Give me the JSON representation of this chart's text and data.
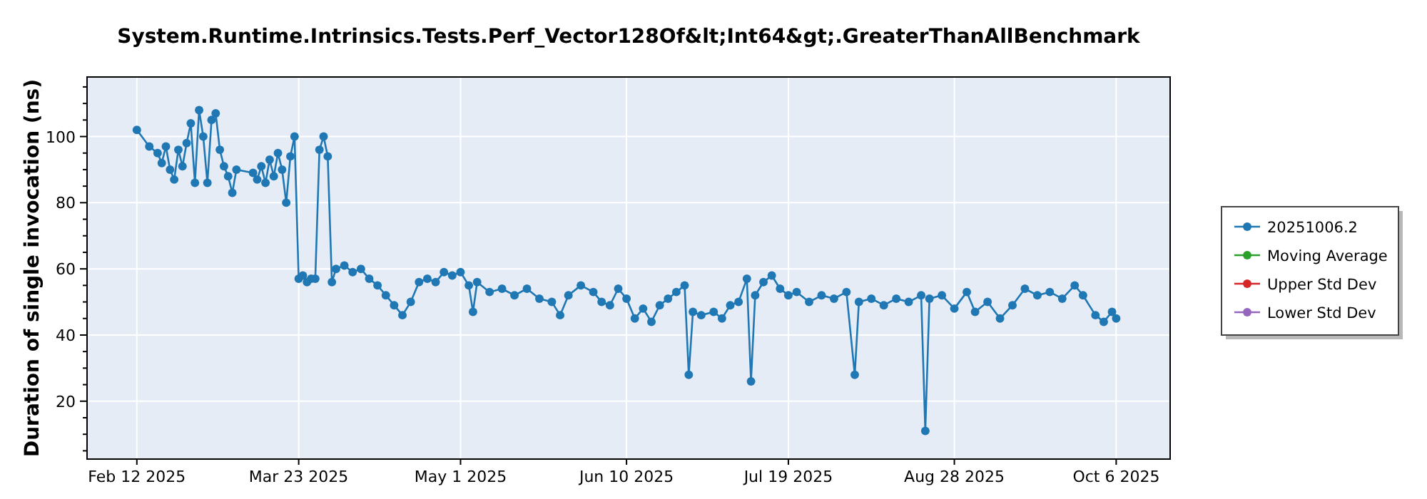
{
  "chart_data": {
    "type": "line",
    "title": "System.Runtime.Intrinsics.Tests.Perf_Vector128Of&lt;Int64&gt;.GreaterThanAllBenchmark",
    "ylabel": "Duration of single invocation (ns)",
    "x": [
      "2025-02-12",
      "2025-02-15",
      "2025-02-17",
      "2025-02-18",
      "2025-02-19",
      "2025-02-20",
      "2025-02-21",
      "2025-02-22",
      "2025-02-23",
      "2025-02-24",
      "2025-02-25",
      "2025-02-26",
      "2025-02-27",
      "2025-02-28",
      "2025-03-01",
      "2025-03-02",
      "2025-03-03",
      "2025-03-04",
      "2025-03-05",
      "2025-03-06",
      "2025-03-07",
      "2025-03-08",
      "2025-03-12",
      "2025-03-13",
      "2025-03-14",
      "2025-03-15",
      "2025-03-16",
      "2025-03-17",
      "2025-03-18",
      "2025-03-19",
      "2025-03-20",
      "2025-03-21",
      "2025-03-22",
      "2025-03-23",
      "2025-03-24",
      "2025-03-25",
      "2025-03-26",
      "2025-03-27",
      "2025-03-28",
      "2025-03-29",
      "2025-03-30",
      "2025-03-31",
      "2025-04-01",
      "2025-04-03",
      "2025-04-05",
      "2025-04-07",
      "2025-04-09",
      "2025-04-11",
      "2025-04-13",
      "2025-04-15",
      "2025-04-17",
      "2025-04-19",
      "2025-04-21",
      "2025-04-23",
      "2025-04-25",
      "2025-04-27",
      "2025-04-29",
      "2025-05-01",
      "2025-05-03",
      "2025-05-04",
      "2025-05-05",
      "2025-05-08",
      "2025-05-11",
      "2025-05-14",
      "2025-05-17",
      "2025-05-20",
      "2025-05-23",
      "2025-05-25",
      "2025-05-27",
      "2025-05-30",
      "2025-06-02",
      "2025-06-04",
      "2025-06-06",
      "2025-06-08",
      "2025-06-10",
      "2025-06-12",
      "2025-06-14",
      "2025-06-16",
      "2025-06-18",
      "2025-06-20",
      "2025-06-22",
      "2025-06-24",
      "2025-06-25",
      "2025-06-26",
      "2025-06-28",
      "2025-07-01",
      "2025-07-03",
      "2025-07-05",
      "2025-07-07",
      "2025-07-09",
      "2025-07-10",
      "2025-07-11",
      "2025-07-13",
      "2025-07-15",
      "2025-07-17",
      "2025-07-19",
      "2025-07-21",
      "2025-07-24",
      "2025-07-27",
      "2025-07-30",
      "2025-08-02",
      "2025-08-04",
      "2025-08-05",
      "2025-08-08",
      "2025-08-11",
      "2025-08-14",
      "2025-08-17",
      "2025-08-20",
      "2025-08-21",
      "2025-08-22",
      "2025-08-25",
      "2025-08-28",
      "2025-08-31",
      "2025-09-02",
      "2025-09-05",
      "2025-09-08",
      "2025-09-11",
      "2025-09-14",
      "2025-09-17",
      "2025-09-20",
      "2025-09-23",
      "2025-09-26",
      "2025-09-28",
      "2025-10-01",
      "2025-10-03",
      "2025-10-05",
      "2025-10-06"
    ],
    "series": [
      {
        "name": "20251006.2",
        "color": "#1f77b4",
        "values": [
          102,
          97,
          95,
          92,
          97,
          90,
          87,
          96,
          91,
          98,
          104,
          86,
          108,
          100,
          86,
          105,
          107,
          96,
          91,
          88,
          83,
          90,
          89,
          87,
          91,
          86,
          93,
          88,
          95,
          90,
          80,
          94,
          100,
          57,
          58,
          56,
          57,
          57,
          96,
          100,
          94,
          56,
          60,
          61,
          59,
          60,
          57,
          55,
          52,
          49,
          46,
          50,
          56,
          57,
          56,
          59,
          58,
          59,
          55,
          47,
          56,
          53,
          54,
          52,
          54,
          51,
          50,
          46,
          52,
          55,
          53,
          50,
          49,
          54,
          51,
          45,
          48,
          44,
          49,
          51,
          53,
          55,
          28,
          47,
          46,
          47,
          45,
          49,
          50,
          57,
          26,
          52,
          56,
          58,
          54,
          52,
          53,
          50,
          52,
          51,
          53,
          28,
          50,
          51,
          49,
          51,
          50,
          52,
          11,
          51,
          52,
          48,
          53,
          47,
          50,
          45,
          49,
          54,
          52,
          53,
          51,
          55,
          52,
          46,
          44,
          47,
          45
        ]
      },
      {
        "name": "Moving Average",
        "color": "#2ca02c",
        "values": [
          null,
          null,
          null,
          null,
          null,
          null,
          null,
          null,
          null,
          null,
          null,
          null,
          null,
          null,
          null,
          null,
          null,
          null,
          null,
          null,
          null,
          null,
          null,
          null,
          null,
          null,
          null,
          null,
          null,
          null,
          null,
          null,
          null,
          null,
          null,
          null,
          null,
          null,
          null,
          null,
          null,
          null,
          null,
          null,
          null,
          null,
          null,
          null,
          null,
          null,
          null,
          null,
          null,
          null,
          null,
          null,
          null,
          null,
          null,
          null,
          null,
          null,
          null,
          null,
          null,
          null,
          null,
          null,
          null,
          null,
          null,
          null,
          null,
          null,
          null,
          null,
          null,
          null,
          null,
          null,
          null,
          null,
          null,
          null,
          null,
          null,
          null,
          null,
          null,
          null,
          null,
          null,
          null,
          null,
          null,
          null,
          null,
          null,
          null,
          null,
          null,
          null,
          null,
          null,
          null,
          null,
          null,
          null,
          null,
          null,
          null,
          null,
          null,
          null,
          null,
          null,
          null,
          null,
          null,
          null,
          null,
          null,
          null,
          null,
          null,
          null,
          null
        ]
      },
      {
        "name": "Upper Std Dev",
        "color": "#d62728",
        "values": [
          null,
          null,
          null,
          null,
          null,
          null,
          null,
          null,
          null,
          null,
          null,
          null,
          null,
          null,
          null,
          null,
          null,
          null,
          null,
          null,
          null,
          null,
          null,
          null,
          null,
          null,
          null,
          null,
          null,
          null,
          null,
          null,
          null,
          null,
          null,
          null,
          null,
          null,
          null,
          null,
          null,
          null,
          null,
          null,
          null,
          null,
          null,
          null,
          null,
          null,
          null,
          null,
          null,
          null,
          null,
          null,
          null,
          null,
          null,
          null,
          null,
          null,
          null,
          null,
          null,
          null,
          null,
          null,
          null,
          null,
          null,
          null,
          null,
          null,
          null,
          null,
          null,
          null,
          null,
          null,
          null,
          null,
          null,
          null,
          null,
          null,
          null,
          null,
          null,
          null,
          null,
          null,
          null,
          null,
          null,
          null,
          null,
          null,
          null,
          null,
          null,
          null,
          null,
          null,
          null,
          null,
          null,
          null,
          null,
          null,
          null,
          null,
          null,
          null,
          null,
          null,
          null,
          null,
          null,
          null,
          null,
          null,
          null,
          null,
          null,
          null,
          null
        ]
      },
      {
        "name": "Lower Std Dev",
        "color": "#9467bd",
        "values": [
          null,
          null,
          null,
          null,
          null,
          null,
          null,
          null,
          null,
          null,
          null,
          null,
          null,
          null,
          null,
          null,
          null,
          null,
          null,
          null,
          null,
          null,
          null,
          null,
          null,
          null,
          null,
          null,
          null,
          null,
          null,
          null,
          null,
          null,
          null,
          null,
          null,
          null,
          null,
          null,
          null,
          null,
          null,
          null,
          null,
          null,
          null,
          null,
          null,
          null,
          null,
          null,
          null,
          null,
          null,
          null,
          null,
          null,
          null,
          null,
          null,
          null,
          null,
          null,
          null,
          null,
          null,
          null,
          null,
          null,
          null,
          null,
          null,
          null,
          null,
          null,
          null,
          null,
          null,
          null,
          null,
          null,
          null,
          null,
          null,
          null,
          null,
          null,
          null,
          null,
          null,
          null,
          null,
          null,
          null,
          null,
          null,
          null,
          null,
          null,
          null,
          null,
          null,
          null,
          null,
          null,
          null,
          null,
          null,
          null,
          null,
          null,
          null,
          null,
          null,
          null,
          null,
          null,
          null,
          null,
          null,
          null,
          null,
          null,
          null,
          null,
          null
        ]
      }
    ],
    "xlim": [
      "2025-01-31",
      "2025-10-19"
    ],
    "xticks": [
      {
        "value": "2025-02-12",
        "label": "Feb 12 2025"
      },
      {
        "value": "2025-03-23",
        "label": "Mar 23 2025"
      },
      {
        "value": "2025-05-01",
        "label": "May 1 2025"
      },
      {
        "value": "2025-06-10",
        "label": "Jun 10 2025"
      },
      {
        "value": "2025-07-19",
        "label": "Jul 19 2025"
      },
      {
        "value": "2025-08-28",
        "label": "Aug 28 2025"
      },
      {
        "value": "2025-10-06",
        "label": "Oct 6 2025"
      }
    ],
    "ylim": [
      2.5,
      118
    ],
    "yticks": [
      {
        "value": 5,
        "label": null
      },
      {
        "value": 10,
        "label": null
      },
      {
        "value": 15,
        "label": null
      },
      20,
      {
        "value": 25,
        "label": null
      },
      {
        "value": 30,
        "label": null
      },
      {
        "value": 35,
        "label": null
      },
      40,
      {
        "value": 45,
        "label": null
      },
      {
        "value": 50,
        "label": null
      },
      {
        "value": 55,
        "label": null
      },
      60,
      {
        "value": 65,
        "label": null
      },
      {
        "value": 70,
        "label": null
      },
      {
        "value": 75,
        "label": null
      },
      80,
      {
        "value": 85,
        "label": null
      },
      {
        "value": 90,
        "label": null
      },
      {
        "value": 95,
        "label": null
      },
      100,
      {
        "value": 105,
        "label": null
      },
      {
        "value": 110,
        "label": null
      },
      {
        "value": 115,
        "label": null
      }
    ],
    "grid": true,
    "legend": "right",
    "marker": "circle",
    "line_style": "solid"
  }
}
